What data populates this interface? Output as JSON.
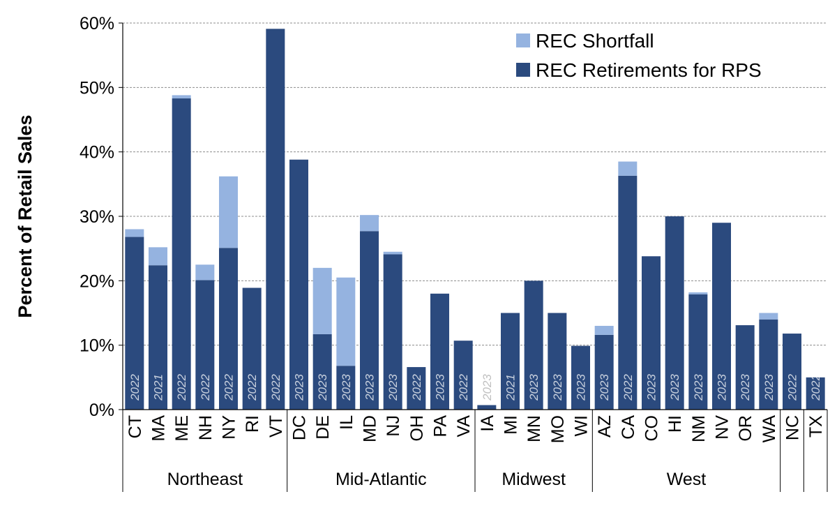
{
  "chart_data": {
    "type": "bar",
    "stacked": true,
    "ylabel": "Percent of Retail Sales",
    "ylim": [
      0,
      60
    ],
    "yticks": [
      "0%",
      "10%",
      "20%",
      "30%",
      "40%",
      "50%",
      "60%"
    ],
    "grid": true,
    "legend_position": "top-right",
    "colors": {
      "retirements": "#2b4a7e",
      "shortfall": "#95b3e0"
    },
    "series": [
      {
        "name": "REC Shortfall",
        "key": "shortfall"
      },
      {
        "name": "REC Retirements for RPS",
        "key": "retirements"
      }
    ],
    "bars": [
      {
        "state": "CT",
        "year": "2022",
        "retirements": 26.8,
        "shortfall": 1.2
      },
      {
        "state": "MA",
        "year": "2021",
        "retirements": 22.4,
        "shortfall": 2.8
      },
      {
        "state": "ME",
        "year": "2022",
        "retirements": 48.3,
        "shortfall": 0.5
      },
      {
        "state": "NH",
        "year": "2022",
        "retirements": 20.1,
        "shortfall": 2.4
      },
      {
        "state": "NY",
        "year": "2022",
        "retirements": 25.1,
        "shortfall": 11.1
      },
      {
        "state": "RI",
        "year": "2022",
        "retirements": 18.9,
        "shortfall": 0
      },
      {
        "state": "VT",
        "year": "2022",
        "retirements": 59.1,
        "shortfall": 0
      },
      {
        "state": "DC",
        "year": "2023",
        "retirements": 38.8,
        "shortfall": 0
      },
      {
        "state": "DE",
        "year": "2023",
        "retirements": 11.7,
        "shortfall": 10.3
      },
      {
        "state": "IL",
        "year": "2023",
        "retirements": 6.8,
        "shortfall": 13.7
      },
      {
        "state": "MD",
        "year": "2023",
        "retirements": 27.7,
        "shortfall": 2.5
      },
      {
        "state": "NJ",
        "year": "2023",
        "retirements": 24.1,
        "shortfall": 0.4
      },
      {
        "state": "OH",
        "year": "2022",
        "retirements": 6.6,
        "shortfall": 0
      },
      {
        "state": "PA",
        "year": "2023",
        "retirements": 18.0,
        "shortfall": 0
      },
      {
        "state": "VA",
        "year": "2022",
        "retirements": 10.7,
        "shortfall": 0
      },
      {
        "state": "IA",
        "year": "2023",
        "retirements": 0.7,
        "shortfall": 0
      },
      {
        "state": "MI",
        "year": "2021",
        "retirements": 15.0,
        "shortfall": 0
      },
      {
        "state": "MN",
        "year": "2023",
        "retirements": 20.0,
        "shortfall": 0
      },
      {
        "state": "MO",
        "year": "2023",
        "retirements": 15.0,
        "shortfall": 0
      },
      {
        "state": "WI",
        "year": "2023",
        "retirements": 9.9,
        "shortfall": 0
      },
      {
        "state": "AZ",
        "year": "2023",
        "retirements": 11.6,
        "shortfall": 1.4
      },
      {
        "state": "CA",
        "year": "2022",
        "retirements": 36.3,
        "shortfall": 2.2
      },
      {
        "state": "CO",
        "year": "2023",
        "retirements": 23.8,
        "shortfall": 0
      },
      {
        "state": "HI",
        "year": "2023",
        "retirements": 30.0,
        "shortfall": 0
      },
      {
        "state": "NM",
        "year": "2023",
        "retirements": 17.9,
        "shortfall": 0.3
      },
      {
        "state": "NV",
        "year": "2023",
        "retirements": 29.0,
        "shortfall": 0
      },
      {
        "state": "OR",
        "year": "2023",
        "retirements": 13.1,
        "shortfall": 0
      },
      {
        "state": "WA",
        "year": "2023",
        "retirements": 14.0,
        "shortfall": 1.0
      },
      {
        "state": "NC",
        "year": "2022",
        "retirements": 11.8,
        "shortfall": 0
      },
      {
        "state": "TX",
        "year": "2022",
        "retirements": 5.0,
        "shortfall": 0
      }
    ],
    "regions": [
      {
        "name": "Northeast",
        "count": 7
      },
      {
        "name": "Mid-Atlantic",
        "count": 8
      },
      {
        "name": "Midwest",
        "count": 5
      },
      {
        "name": "West",
        "count": 8
      },
      {
        "name": "",
        "count": 1
      },
      {
        "name": "",
        "count": 1
      }
    ]
  }
}
